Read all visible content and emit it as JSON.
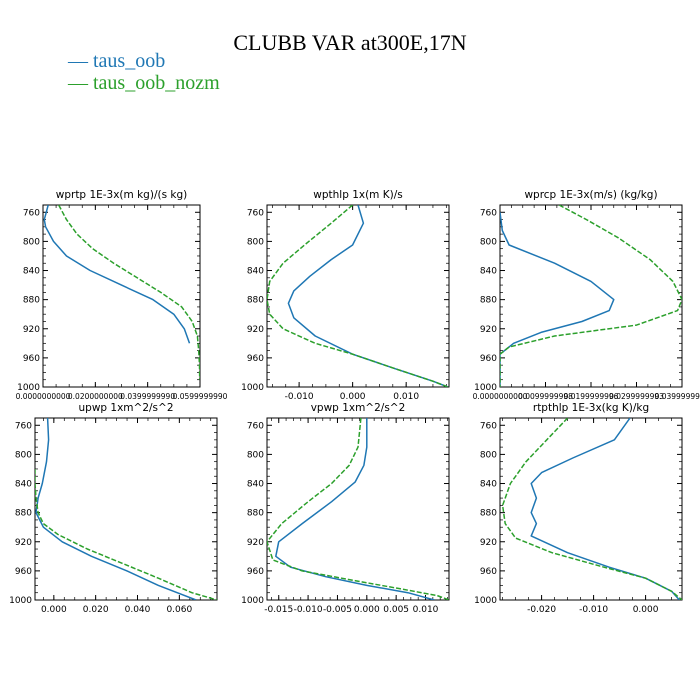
{
  "figure": {
    "title": "CLUBB VAR at300E,17N",
    "legend": [
      {
        "label": "taus_oob",
        "color": "#1f77b4"
      },
      {
        "label": "taus_oob_nozm",
        "color": "#2ca02c"
      }
    ]
  },
  "chart_data": [
    {
      "type": "line",
      "title": "wprtp   1E-3x(m kg)/(s kg)",
      "xlim": [
        0.0,
        0.06
      ],
      "ylim": [
        1000,
        750
      ],
      "xticks": [
        0.0,
        0.02,
        0.04,
        0.06
      ],
      "xtick_labels": [
        "0.0000000000",
        "0.0200000000",
        "0.0399999990",
        "0.0599999990"
      ],
      "yticks": [
        760,
        800,
        840,
        880,
        920,
        960,
        1000
      ],
      "ytick_labels": [
        "760",
        "800",
        "840",
        "880",
        "920",
        "960",
        "1000"
      ],
      "series": [
        {
          "name": "taus_oob",
          "color": "#1f77b4",
          "dash": "",
          "x": [
            0.002,
            0.0005,
            0.001,
            0.004,
            0.009,
            0.018,
            0.03,
            0.042,
            0.05,
            0.054,
            0.056
          ],
          "y": [
            750,
            770,
            780,
            800,
            820,
            840,
            860,
            880,
            900,
            920,
            940
          ]
        },
        {
          "name": "taus_oob_nozm",
          "color": "#2ca02c",
          "dash": "5,2",
          "x": [
            0.006,
            0.009,
            0.013,
            0.019,
            0.027,
            0.036,
            0.045,
            0.053,
            0.057,
            0.059,
            0.0595,
            0.0598,
            0.0599
          ],
          "y": [
            750,
            770,
            790,
            810,
            830,
            850,
            870,
            890,
            910,
            930,
            950,
            970,
            990
          ]
        }
      ]
    },
    {
      "type": "line",
      "title": "wpthlp   1x(m K)/s",
      "xlim": [
        -0.016,
        0.018
      ],
      "ylim": [
        1000,
        750
      ],
      "xticks": [
        -0.01,
        0.0,
        0.01
      ],
      "xtick_labels": [
        "-0.010",
        "0.000",
        "0.010"
      ],
      "yticks": [
        760,
        800,
        840,
        880,
        920,
        960,
        1000
      ],
      "ytick_labels": [
        "760",
        "800",
        "840",
        "880",
        "920",
        "960",
        "1000"
      ],
      "series": [
        {
          "name": "taus_oob",
          "color": "#1f77b4",
          "dash": "",
          "x": [
            0.001,
            0.002,
            0.0,
            -0.004,
            -0.008,
            -0.011,
            -0.012,
            -0.011,
            -0.007,
            0.0,
            0.008,
            0.015,
            0.0178
          ],
          "y": [
            750,
            775,
            805,
            825,
            848,
            868,
            885,
            905,
            930,
            955,
            975,
            992,
            1000
          ]
        },
        {
          "name": "taus_oob_nozm",
          "color": "#2ca02c",
          "dash": "5,2",
          "x": [
            0.0,
            -0.004,
            -0.009,
            -0.013,
            -0.0155,
            -0.016,
            -0.0155,
            -0.013,
            -0.007,
            0.0,
            0.008,
            0.015,
            0.0178
          ],
          "y": [
            750,
            775,
            805,
            830,
            855,
            880,
            900,
            920,
            940,
            955,
            975,
            992,
            1000
          ]
        }
      ]
    },
    {
      "type": "line",
      "title": "wprcp   1E-3x(m/s) (kg/kg)",
      "xlim": [
        0.0,
        0.04
      ],
      "ylim": [
        1000,
        750
      ],
      "xticks": [
        0.0,
        0.01,
        0.02,
        0.03,
        0.04
      ],
      "xtick_labels": [
        "0.0000000000",
        "0.0099999998",
        "0.0199999996",
        "0.0299999993",
        "0.0399999991"
      ],
      "yticks": [
        760,
        800,
        840,
        880,
        920,
        960,
        1000
      ],
      "ytick_labels": [
        "760",
        "800",
        "840",
        "880",
        "920",
        "960",
        "1000"
      ],
      "series": [
        {
          "name": "taus_oob",
          "color": "#1f77b4",
          "dash": "",
          "x": [
            0.0,
            0.0005,
            0.002,
            0.012,
            0.02,
            0.025,
            0.024,
            0.018,
            0.009,
            0.003,
            0.0,
            0.0
          ],
          "y": [
            760,
            785,
            805,
            830,
            855,
            880,
            895,
            910,
            925,
            940,
            955,
            1000
          ]
        },
        {
          "name": "taus_oob_nozm",
          "color": "#2ca02c",
          "dash": "5,2",
          "x": [
            0.013,
            0.019,
            0.026,
            0.033,
            0.038,
            0.04,
            0.039,
            0.03,
            0.012,
            0.002,
            0.0,
            0.0
          ],
          "y": [
            750,
            770,
            795,
            825,
            855,
            880,
            895,
            915,
            930,
            945,
            955,
            1000
          ]
        }
      ]
    },
    {
      "type": "line",
      "title": "upwp   1xm^2/s^2",
      "xlim": [
        -0.009,
        0.078
      ],
      "ylim": [
        1000,
        750
      ],
      "xticks": [
        0.0,
        0.02,
        0.04,
        0.06
      ],
      "xtick_labels": [
        "0.000",
        "0.020",
        "0.040",
        "0.060"
      ],
      "yticks": [
        760,
        800,
        840,
        880,
        920,
        960,
        1000
      ],
      "ytick_labels": [
        "760",
        "800",
        "840",
        "880",
        "920",
        "960",
        "1000"
      ],
      "series": [
        {
          "name": "taus_oob",
          "color": "#1f77b4",
          "dash": "",
          "x": [
            -0.003,
            -0.0025,
            -0.0035,
            -0.0055,
            -0.0075,
            -0.0085,
            -0.005,
            0.004,
            0.018,
            0.035,
            0.05,
            0.068
          ],
          "y": [
            750,
            780,
            810,
            840,
            860,
            880,
            900,
            920,
            940,
            960,
            980,
            1000
          ]
        },
        {
          "name": "taus_oob_nozm",
          "color": "#2ca02c",
          "dash": "5,2",
          "x": [
            -0.009,
            -0.009,
            -0.0085,
            -0.0075,
            -0.005,
            0.002,
            0.016,
            0.033,
            0.05,
            0.066,
            0.078
          ],
          "y": [
            820,
            840,
            860,
            880,
            895,
            910,
            930,
            950,
            970,
            990,
            1000
          ]
        }
      ]
    },
    {
      "type": "line",
      "title": "vpwp   1xm^2/s^2",
      "xlim": [
        -0.017,
        0.014
      ],
      "ylim": [
        1000,
        750
      ],
      "xticks": [
        -0.015,
        -0.01,
        -0.005,
        0.0,
        0.005,
        0.01
      ],
      "xtick_labels": [
        "-0.015",
        "-0.010",
        "-0.005",
        "0.000",
        "0.005",
        "0.010"
      ],
      "yticks": [
        760,
        800,
        840,
        880,
        920,
        960,
        1000
      ],
      "ytick_labels": [
        "760",
        "800",
        "840",
        "880",
        "920",
        "960",
        "1000"
      ],
      "series": [
        {
          "name": "taus_oob",
          "color": "#1f77b4",
          "dash": "",
          "x": [
            0.0,
            0.0,
            -0.0005,
            -0.002,
            -0.006,
            -0.011,
            -0.015,
            -0.0155,
            -0.013,
            -0.007,
            0.0,
            0.007,
            0.0115
          ],
          "y": [
            750,
            790,
            815,
            838,
            865,
            895,
            920,
            940,
            955,
            968,
            980,
            990,
            1000
          ]
        },
        {
          "name": "taus_oob_nozm",
          "color": "#2ca02c",
          "dash": "5,2",
          "x": [
            -0.001,
            -0.0015,
            -0.003,
            -0.006,
            -0.01,
            -0.0145,
            -0.017,
            -0.016,
            -0.011,
            -0.003,
            0.006,
            0.012,
            0.014
          ],
          "y": [
            750,
            790,
            815,
            840,
            865,
            895,
            920,
            945,
            960,
            972,
            985,
            994,
            1000
          ]
        }
      ]
    },
    {
      "type": "line",
      "title": "rtpthlp   1E-3x(kg K)/kg",
      "xlim": [
        -0.028,
        0.007
      ],
      "ylim": [
        1000,
        750
      ],
      "xticks": [
        -0.02,
        -0.01,
        0.0
      ],
      "xtick_labels": [
        "-0.020",
        "-0.010",
        "0.000"
      ],
      "yticks": [
        760,
        800,
        840,
        880,
        920,
        960,
        1000
      ],
      "ytick_labels": [
        "760",
        "800",
        "840",
        "880",
        "920",
        "960",
        "1000"
      ],
      "series": [
        {
          "name": "taus_oob",
          "color": "#1f77b4",
          "dash": "",
          "x": [
            -0.003,
            -0.006,
            -0.014,
            -0.02,
            -0.022,
            -0.021,
            -0.022,
            -0.021,
            -0.022,
            -0.015,
            -0.007,
            0.0,
            0.005,
            0.0065
          ],
          "y": [
            750,
            780,
            805,
            825,
            840,
            860,
            880,
            895,
            912,
            935,
            955,
            970,
            988,
            1000
          ]
        },
        {
          "name": "taus_oob_nozm",
          "color": "#2ca02c",
          "dash": "5,2",
          "x": [
            -0.015,
            -0.019,
            -0.023,
            -0.026,
            -0.0275,
            -0.027,
            -0.025,
            -0.018,
            -0.008,
            0.0,
            0.005,
            0.007
          ],
          "y": [
            750,
            780,
            810,
            840,
            870,
            895,
            915,
            935,
            955,
            970,
            988,
            1000
          ]
        }
      ]
    }
  ]
}
